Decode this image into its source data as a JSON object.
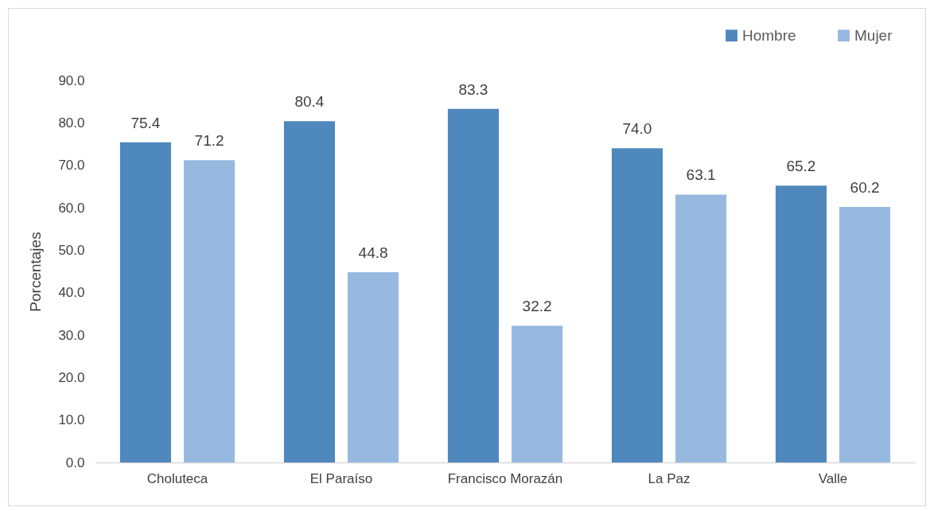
{
  "chart_data": {
    "type": "bar",
    "ylabel": "Porcentajes",
    "categories": [
      "Choluteca",
      "El Paraíso",
      "Francisco Morazán",
      "La Paz",
      "Valle"
    ],
    "series": [
      {
        "name": "Hombre",
        "color": "#4f88bd",
        "values": [
          75.4,
          80.4,
          83.3,
          74.0,
          65.2
        ],
        "value_labels": [
          "75.4",
          "80.4",
          "83.3",
          "74.0",
          "65.2"
        ]
      },
      {
        "name": "Mujer",
        "color": "#97b9e0",
        "values": [
          71.2,
          44.8,
          32.2,
          63.1,
          60.2
        ],
        "value_labels": [
          "71.2",
          "44.8",
          "32.2",
          "63.1",
          "60.2"
        ]
      }
    ],
    "ylim": [
      0,
      90
    ],
    "yticks": [
      {
        "value": 0,
        "label": "0.0"
      },
      {
        "value": 10,
        "label": "10.0"
      },
      {
        "value": 20,
        "label": "20.0"
      },
      {
        "value": 30,
        "label": "30.0"
      },
      {
        "value": 40,
        "label": "40.0"
      },
      {
        "value": 50,
        "label": "50.0"
      },
      {
        "value": 60,
        "label": "60.0"
      },
      {
        "value": 70,
        "label": "70.0"
      },
      {
        "value": 80,
        "label": "80.0"
      },
      {
        "value": 90,
        "label": "90.0"
      }
    ],
    "legend": "top right"
  }
}
